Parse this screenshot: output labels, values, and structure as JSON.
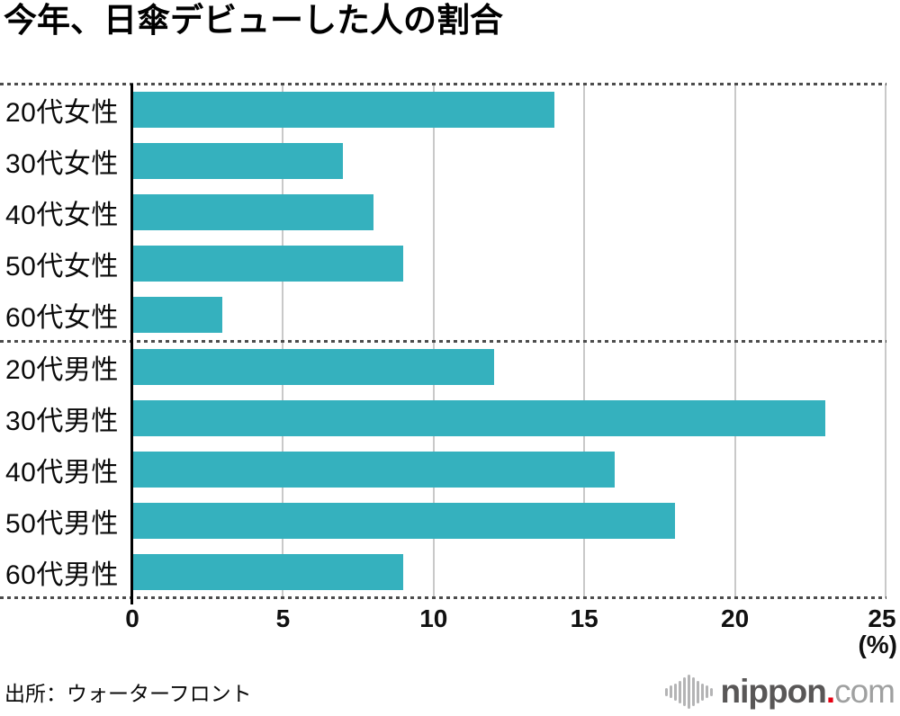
{
  "title": "今年、日傘デビューした人の割合",
  "source": "出所：ウォーターフロント",
  "logo": {
    "brand": "nippon",
    "dot": ".",
    "tld": "com",
    "brand_color": "#595757",
    "dot_color": "#e60012",
    "tld_color": "#9fa0a0",
    "icon": "waveform-icon"
  },
  "chart_data": {
    "type": "bar",
    "orientation": "horizontal",
    "title": "今年、日傘デビューした人の割合",
    "categories": [
      "20代女性",
      "30代女性",
      "40代女性",
      "50代女性",
      "60代女性",
      "20代男性",
      "30代男性",
      "40代男性",
      "50代男性",
      "60代男性"
    ],
    "values": [
      14,
      7,
      8,
      9,
      3,
      12,
      23,
      16,
      18,
      9
    ],
    "group_separator_after_index": 4,
    "xlim": [
      0,
      25
    ],
    "xticks": [
      0,
      5,
      10,
      15,
      20,
      25
    ],
    "x_unit_label": "(%)",
    "bar_color": "#35b1be",
    "grid": true,
    "gridline_color": "#c9c9c9",
    "legend": "none"
  }
}
